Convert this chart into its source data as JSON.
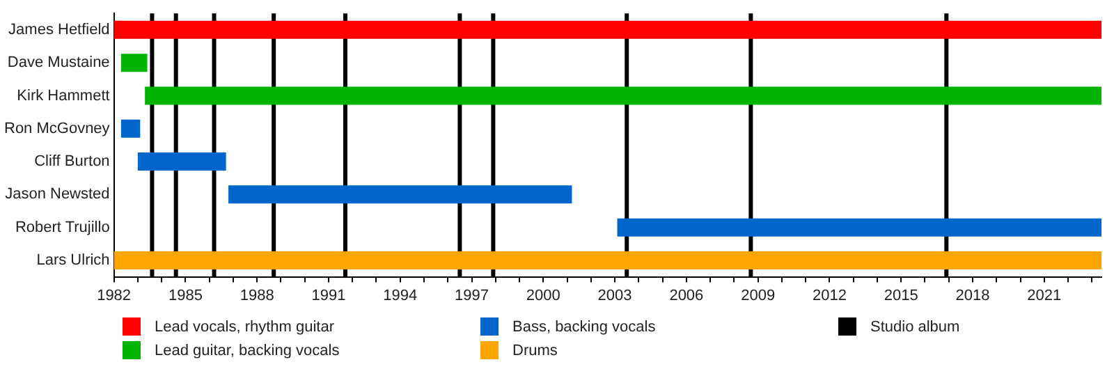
{
  "chart_data": {
    "type": "bar",
    "orientation": "horizontal",
    "legend": "bottom",
    "grid": false,
    "categories": [
      "James Hetfield",
      "Dave Mustaine",
      "Kirk Hammett",
      "Ron McGovney",
      "Cliff Burton",
      "Jason Newsted",
      "Robert Trujillo",
      "Lars Ulrich"
    ],
    "series": [
      {
        "name": "Lead vocals, rhythm guitar",
        "color": "#ff0000",
        "base": [
          1982,
          null,
          null,
          null,
          null,
          null,
          null,
          null
        ],
        "values": [
          41.4,
          null,
          null,
          null,
          null,
          null,
          null,
          null
        ]
      },
      {
        "name": "Lead guitar, backing vocals",
        "color": "#00b400",
        "base": [
          null,
          1982.3,
          1983.3,
          null,
          null,
          null,
          null,
          null
        ],
        "values": [
          null,
          1.1,
          40.1,
          null,
          null,
          null,
          null,
          null
        ]
      },
      {
        "name": "Bass, backing vocals",
        "color": "#0066cc",
        "base": [
          null,
          null,
          null,
          1982.3,
          1983.0,
          1986.8,
          2003.1,
          null
        ],
        "values": [
          null,
          null,
          null,
          0.8,
          3.7,
          14.4,
          20.3,
          null
        ]
      },
      {
        "name": "Drums",
        "color": "#ffa500",
        "base": [
          null,
          null,
          null,
          null,
          null,
          null,
          null,
          1982
        ],
        "values": [
          null,
          null,
          null,
          null,
          null,
          null,
          null,
          41.4
        ]
      }
    ],
    "xlim": [
      1982,
      2023.4
    ],
    "xticks": [
      1982,
      {
        "value": 1983,
        "label": null
      },
      {
        "value": 1984,
        "label": null
      },
      1985,
      {
        "value": 1986,
        "label": null
      },
      {
        "value": 1987,
        "label": null
      },
      1988,
      {
        "value": 1989,
        "label": null
      },
      {
        "value": 1990,
        "label": null
      },
      1991,
      {
        "value": 1992,
        "label": null
      },
      {
        "value": 1993,
        "label": null
      },
      1994,
      {
        "value": 1995,
        "label": null
      },
      {
        "value": 1996,
        "label": null
      },
      1997,
      {
        "value": 1998,
        "label": null
      },
      {
        "value": 1999,
        "label": null
      },
      2000,
      {
        "value": 2001,
        "label": null
      },
      {
        "value": 2002,
        "label": null
      },
      2003,
      {
        "value": 2004,
        "label": null
      },
      {
        "value": 2005,
        "label": null
      },
      2006,
      {
        "value": 2007,
        "label": null
      },
      {
        "value": 2008,
        "label": null
      },
      2009,
      {
        "value": 2010,
        "label": null
      },
      {
        "value": 2011,
        "label": null
      },
      2012,
      {
        "value": 2013,
        "label": null
      },
      {
        "value": 2014,
        "label": null
      },
      2015,
      {
        "value": 2016,
        "label": null
      },
      {
        "value": 2017,
        "label": null
      },
      2018,
      {
        "value": 2019,
        "label": null
      },
      {
        "value": 2020,
        "label": null
      },
      2021,
      {
        "value": 2022,
        "label": null
      },
      {
        "value": 2023,
        "label": null
      }
    ],
    "ref_lines": [
      {
        "axis": "x",
        "value": 1983.6,
        "label": "Studio album",
        "color": "#000000"
      },
      {
        "axis": "x",
        "value": 1984.6,
        "color": "#000000"
      },
      {
        "axis": "x",
        "value": 1986.2,
        "color": "#000000"
      },
      {
        "axis": "x",
        "value": 1988.7,
        "color": "#000000"
      },
      {
        "axis": "x",
        "value": 1991.7,
        "color": "#000000"
      },
      {
        "axis": "x",
        "value": 1996.5,
        "color": "#000000"
      },
      {
        "axis": "x",
        "value": 1997.9,
        "color": "#000000"
      },
      {
        "axis": "x",
        "value": 2003.5,
        "color": "#000000"
      },
      {
        "axis": "x",
        "value": 2008.7,
        "color": "#000000"
      },
      {
        "axis": "x",
        "value": 2016.9,
        "color": "#000000"
      }
    ]
  }
}
